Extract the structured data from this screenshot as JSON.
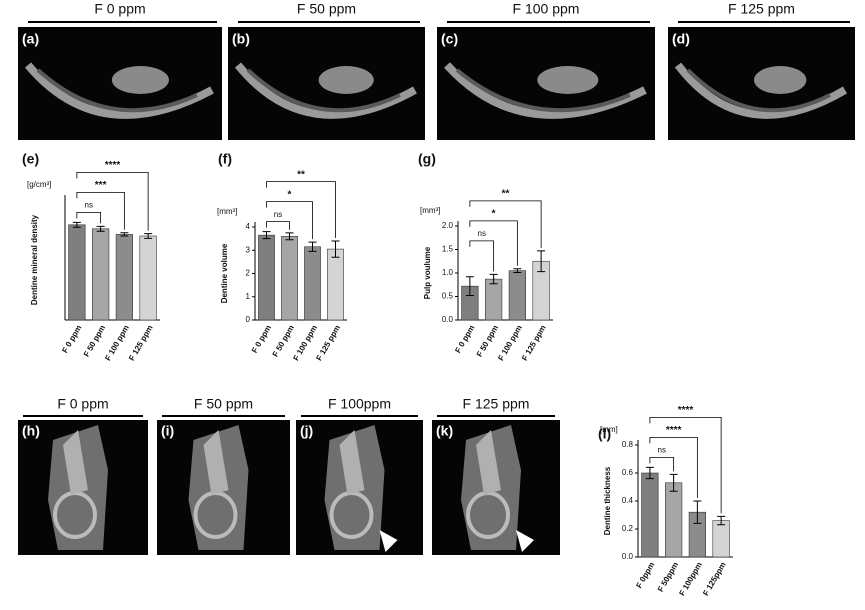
{
  "image_panels": {
    "top": [
      {
        "header": "F 0 ppm",
        "panel": "(a)"
      },
      {
        "header": "F 50 ppm",
        "panel": "(b)"
      },
      {
        "header": "F 100 ppm",
        "panel": "(c)"
      },
      {
        "header": "F 125 ppm",
        "panel": "(d)"
      }
    ],
    "bottom": [
      {
        "header": "F 0 ppm",
        "panel": "(h)"
      },
      {
        "header": "F 50 ppm",
        "panel": "(i)"
      },
      {
        "header": "F 100ppm",
        "panel": "(j)"
      },
      {
        "header": "F 125 ppm",
        "panel": "(k)"
      }
    ]
  },
  "chart_data": [
    {
      "type": "bar",
      "panel": "(e)",
      "unit": "[g/cm³]",
      "y_label": "Dentine mineral density",
      "categories": [
        "F 0 ppm",
        "F 50 ppm",
        "F 100 ppm",
        "F 125 ppm"
      ],
      "values": [
        1.19,
        1.14,
        1.07,
        1.05
      ],
      "errors": [
        0.03,
        0.03,
        0.02,
        0.03
      ],
      "colors": [
        "#7f7f7f",
        "#a6a6a6",
        "#8c8c8c",
        "#d4d4d4"
      ],
      "ylim": [
        0,
        1.5
      ],
      "significance": [
        "ns",
        "***",
        "****"
      ]
    },
    {
      "type": "bar",
      "panel": "(f)",
      "unit": "[mm³]",
      "y_label": "Dentine volume",
      "categories": [
        "F 0 ppm",
        "F 50 ppm",
        "F 100 ppm",
        "F 125 ppm"
      ],
      "values": [
        3.65,
        3.6,
        3.15,
        3.05
      ],
      "errors": [
        0.15,
        0.15,
        0.2,
        0.35
      ],
      "colors": [
        "#7f7f7f",
        "#a6a6a6",
        "#8c8c8c",
        "#d4d4d4"
      ],
      "ylim": [
        0,
        4
      ],
      "yticks": [
        0,
        1,
        2,
        3,
        4
      ],
      "significance": [
        "ns",
        "*",
        "**"
      ]
    },
    {
      "type": "bar",
      "panel": "(g)",
      "unit": "[mm³]",
      "y_label": "Pulp voulume",
      "categories": [
        "F 0 ppm",
        "F 50 ppm",
        "F 100 ppm",
        "F 125 ppm"
      ],
      "values": [
        0.72,
        0.87,
        1.05,
        1.25
      ],
      "errors": [
        0.2,
        0.1,
        0.04,
        0.22
      ],
      "colors": [
        "#7f7f7f",
        "#a6a6a6",
        "#8c8c8c",
        "#d4d4d4"
      ],
      "ylim": [
        0,
        2
      ],
      "yticks": [
        {
          "value": 0,
          "label": "0.0"
        },
        0.5,
        {
          "value": 1,
          "label": "1.0"
        },
        1.5,
        {
          "value": 2,
          "label": "2.0"
        }
      ],
      "significance": [
        "ns",
        "*",
        "**"
      ]
    },
    {
      "type": "bar",
      "panel": "(l)",
      "unit": "[mm]",
      "y_label": "Dentine thickness",
      "categories": [
        "F 0ppm",
        "F 50ppm",
        "F 100ppm",
        "F 125ppm"
      ],
      "values": [
        0.6,
        0.53,
        0.32,
        0.26
      ],
      "errors": [
        0.04,
        0.06,
        0.08,
        0.03
      ],
      "colors": [
        "#7f7f7f",
        "#a6a6a6",
        "#8c8c8c",
        "#d4d4d4"
      ],
      "ylim": [
        0,
        0.8
      ],
      "yticks": [
        {
          "value": 0,
          "label": "0.0"
        },
        0.2,
        0.4,
        0.6,
        0.8
      ],
      "significance": [
        "ns",
        "****",
        "****"
      ]
    }
  ]
}
